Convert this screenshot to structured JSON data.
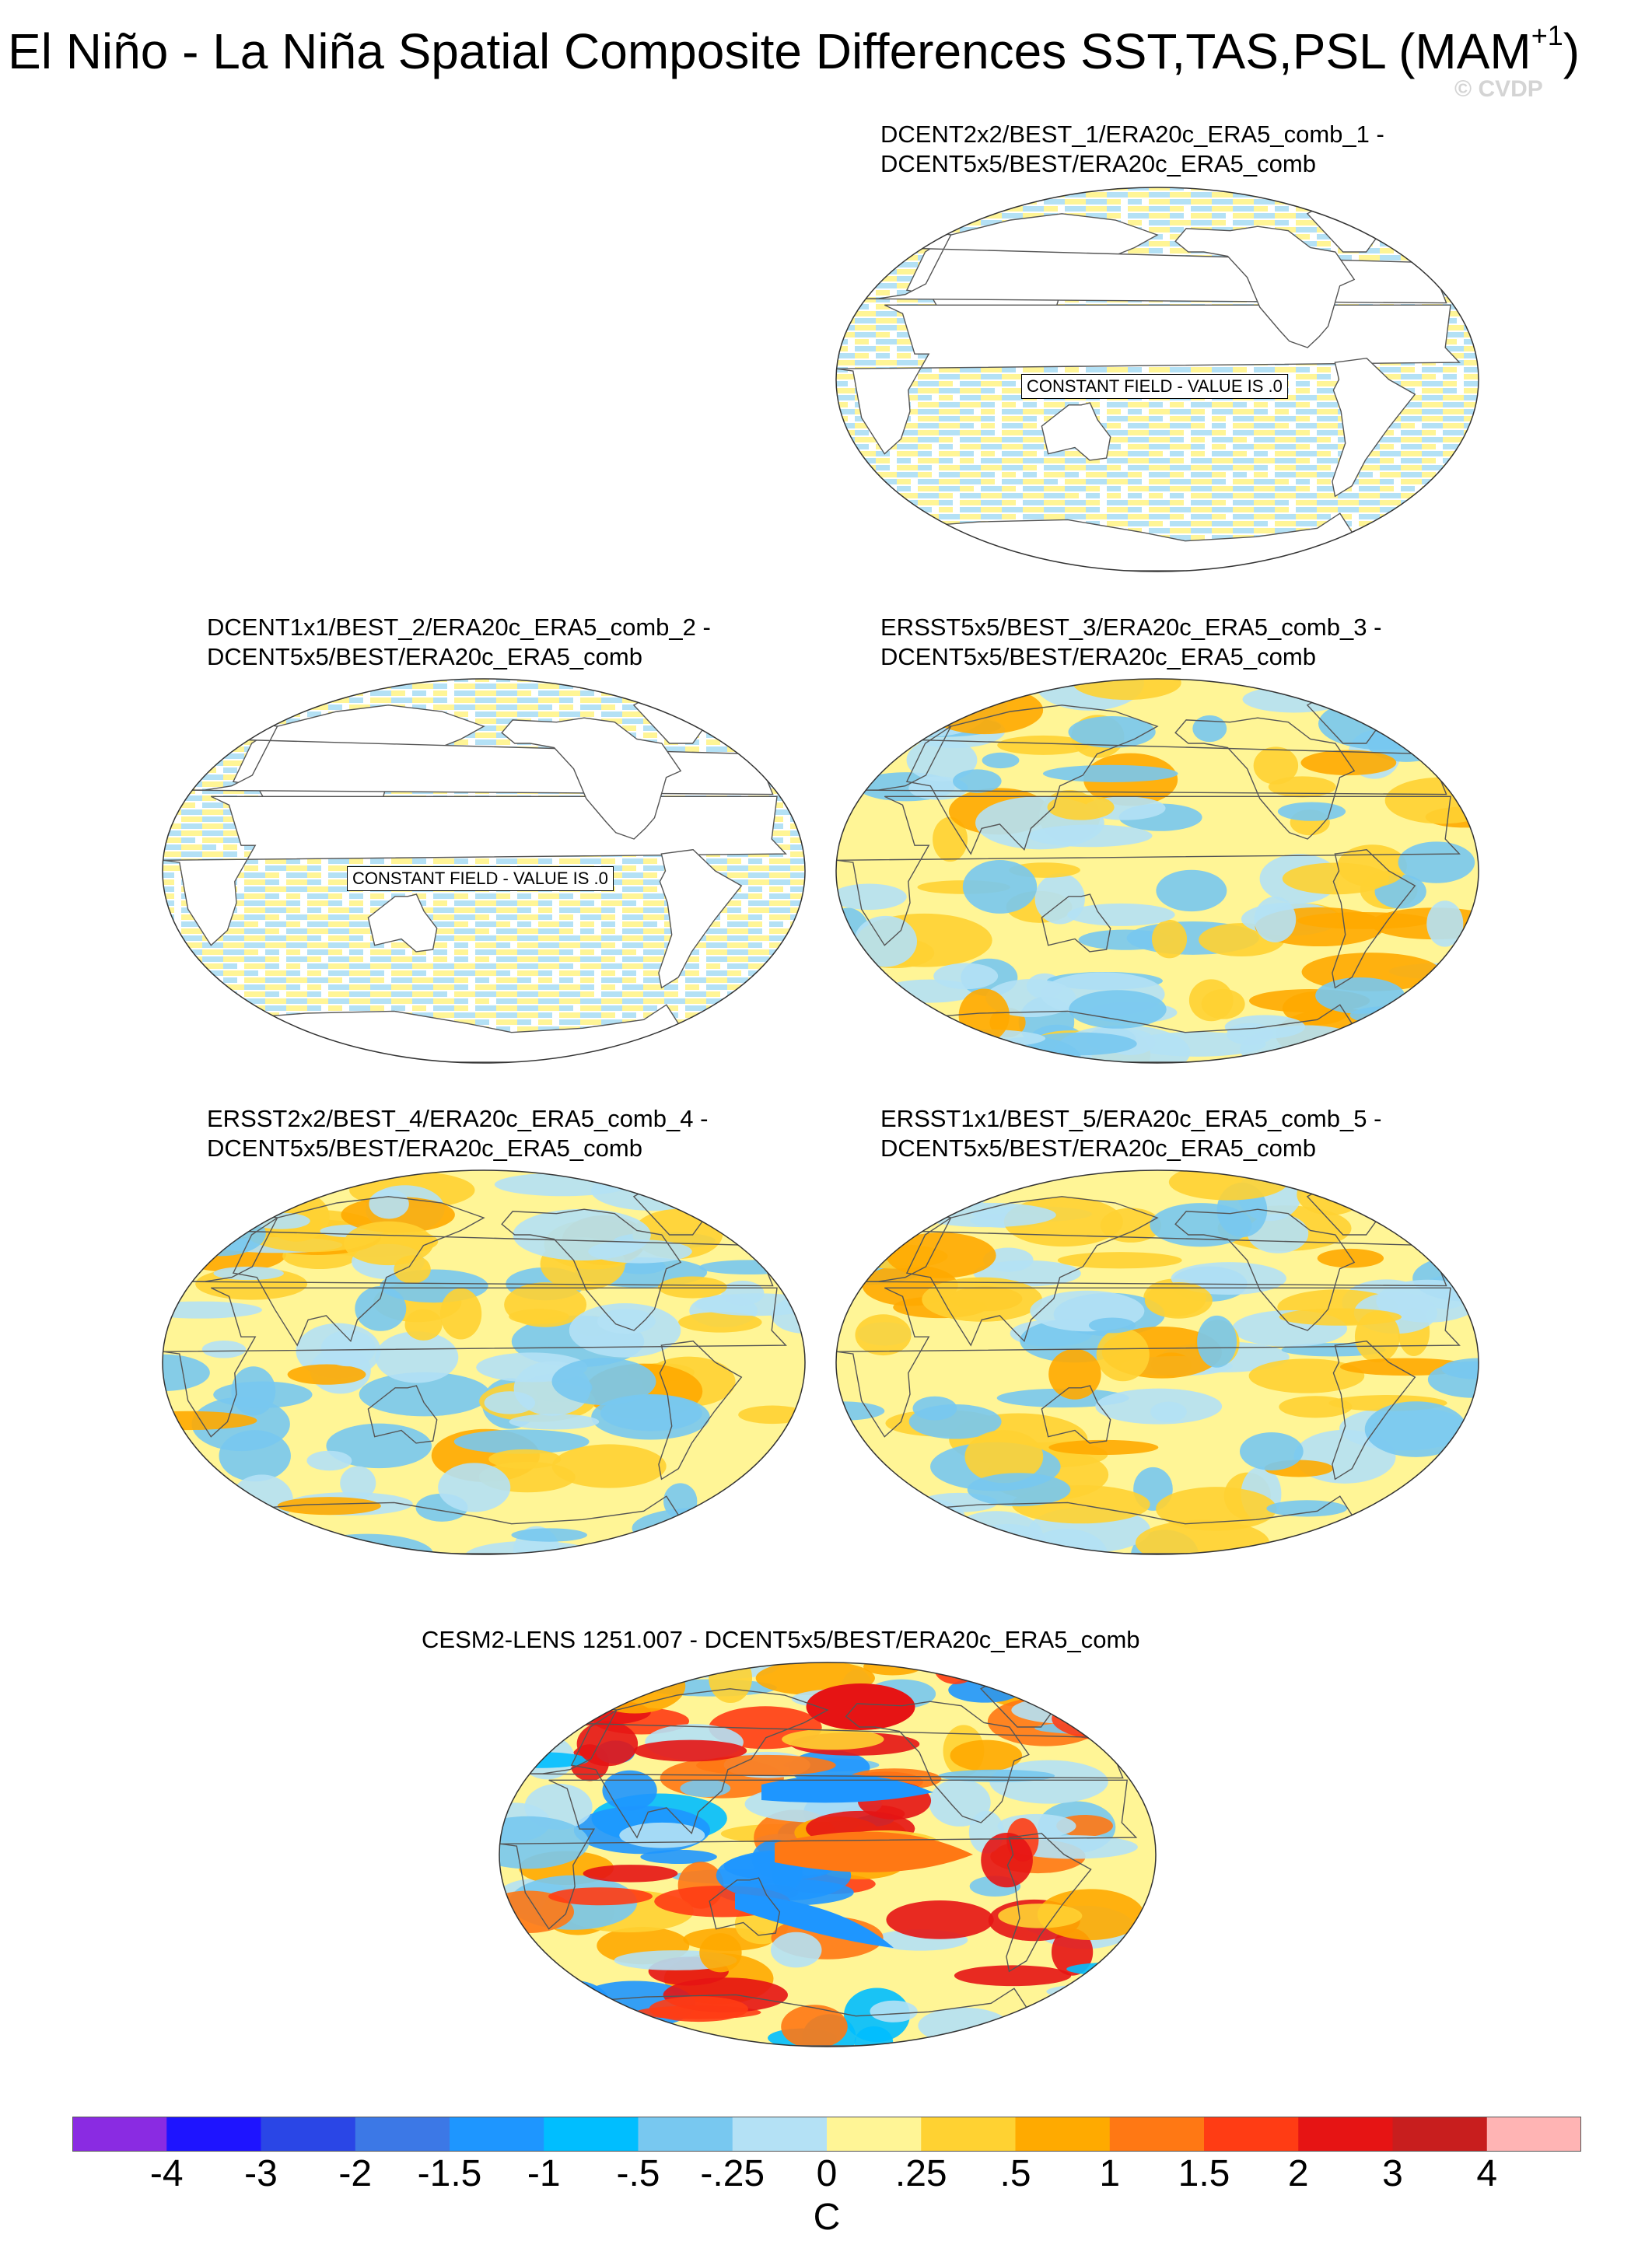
{
  "title_main": "El Niño - La Niña Spatial Composite Differences SST,TAS,PSL (MAM",
  "title_sup": "+1",
  "title_end": ")",
  "watermark": "© CVDP",
  "panels": [
    {
      "id": "p1",
      "line1": "DCENT2x2/BEST_1/ERA20c_ERA5_comb_1 -",
      "line2": "DCENT5x5/BEST/ERA20c_ERA5_comb",
      "type": "constant",
      "label": "CONSTANT FIELD - VALUE IS .0"
    },
    {
      "id": "p2",
      "line1": "DCENT1x1/BEST_2/ERA20c_ERA5_comb_2 -",
      "line2": "DCENT5x5/BEST/ERA20c_ERA5_comb",
      "type": "constant",
      "label": "CONSTANT FIELD - VALUE IS .0"
    },
    {
      "id": "p3",
      "line1": "ERSST5x5/BEST_3/ERA20c_ERA5_comb_3 -",
      "line2": "DCENT5x5/BEST/ERA20c_ERA5_comb",
      "type": "field",
      "style": "mild"
    },
    {
      "id": "p4",
      "line1": "ERSST2x2/BEST_4/ERA20c_ERA5_comb_4 -",
      "line2": "DCENT5x5/BEST/ERA20c_ERA5_comb",
      "type": "field",
      "style": "mild"
    },
    {
      "id": "p5",
      "line1": "ERSST1x1/BEST_5/ERA20c_ERA5_comb_5 -",
      "line2": "DCENT5x5/BEST/ERA20c_ERA5_comb",
      "type": "field",
      "style": "mild"
    },
    {
      "id": "p6",
      "line1": "CESM2-LENS 1251.007 - DCENT5x5/BEST/ERA20c_ERA5_comb",
      "line2": "",
      "type": "field",
      "style": "strong"
    }
  ],
  "colorbar": {
    "colors": [
      "#8a2be2",
      "#1e14ff",
      "#2a46e6",
      "#3c78e6",
      "#1e96ff",
      "#00beff",
      "#78c8f0",
      "#b4e1f5",
      "#fff596",
      "#ffd232",
      "#ffaa00",
      "#ff7814",
      "#ff3c14",
      "#e61414",
      "#c81e1e",
      "#ffb4b4"
    ],
    "tick_labels": [
      "-4",
      "-3",
      "-2",
      "-1.5",
      "-1",
      "-.5",
      "-.25",
      "0",
      ".25",
      ".5",
      "1",
      "1.5",
      "2",
      "3",
      "4"
    ],
    "units": "C"
  }
}
